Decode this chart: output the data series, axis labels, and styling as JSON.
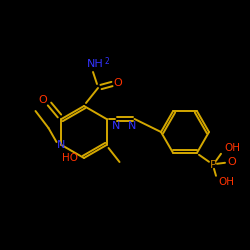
{
  "bg_color": "#000000",
  "bond_color": "#d4a800",
  "label_colors": {
    "O": "#ff3300",
    "N": "#3333ff",
    "P": "#cc8800",
    "C": "#d4a800"
  },
  "figsize": [
    2.5,
    2.5
  ],
  "dpi": 100,
  "ylim": [
    0,
    250
  ],
  "xlim": [
    0,
    250
  ]
}
